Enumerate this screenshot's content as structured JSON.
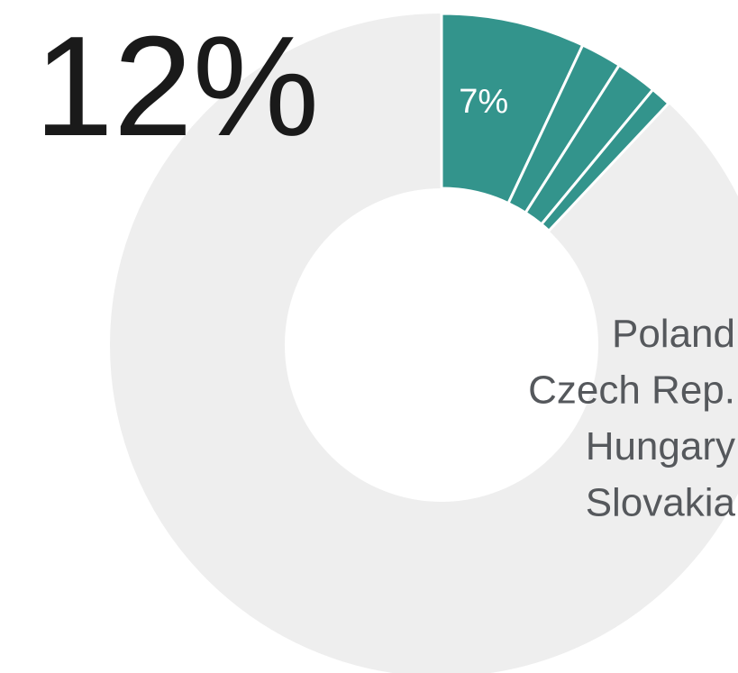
{
  "chart_data": {
    "type": "pie",
    "donut": true,
    "title": "12%",
    "categories": [
      "Poland",
      "Czech Rep.",
      "Hungary",
      "Slovakia"
    ],
    "values": [
      7,
      2,
      2,
      1
    ],
    "value_labels": [
      "7%",
      null,
      null,
      null
    ],
    "color": "#33948c"
  }
}
